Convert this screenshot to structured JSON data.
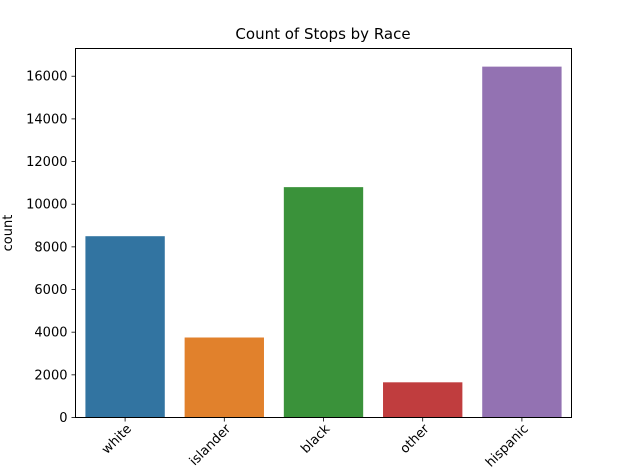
{
  "chart_data": {
    "type": "bar",
    "title": "Count of Stops by Race",
    "xlabel": "",
    "ylabel": "count",
    "categories": [
      "white",
      "islander",
      "black",
      "other",
      "hispanic"
    ],
    "values": [
      8500,
      3750,
      10800,
      1650,
      16450
    ],
    "colors": [
      "#3274a1",
      "#e1812c",
      "#3a923a",
      "#c03d3e",
      "#9372b2"
    ],
    "ylim": [
      0,
      17300
    ],
    "yticks": [
      0,
      2000,
      4000,
      6000,
      8000,
      10000,
      12000,
      14000,
      16000
    ],
    "grid": false,
    "legend": "none"
  }
}
